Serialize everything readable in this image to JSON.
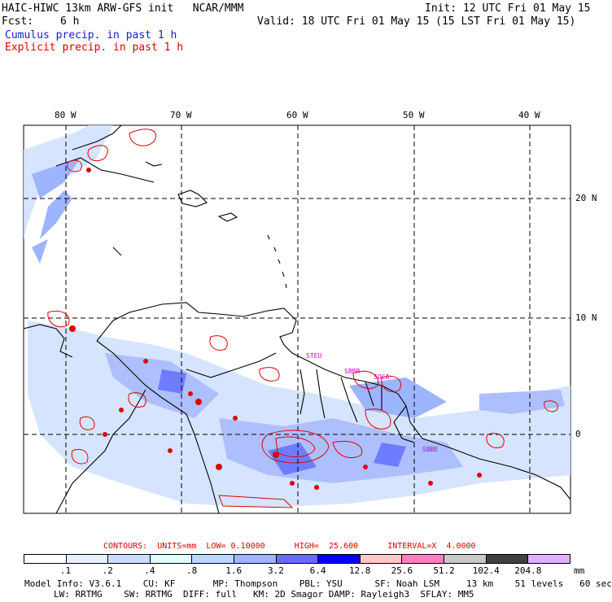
{
  "header": {
    "title": "HAIC-HIWC 13km ARW-GFS init   NCAR/MMM",
    "init": "Init: 12 UTC Fri 01 May 15",
    "fcst_label": "Fcst:",
    "fcst_value": "6 h",
    "valid": "Valid: 18 UTC Fri 01 May 15 (15 LST Fri 01 May 15)",
    "line_cumulus": "Cumulus precip. in past 1 h",
    "line_explicit": "Explicit precip. in past 1 h"
  },
  "map": {
    "lon_labels": [
      "80 W",
      "70 W",
      "60 W",
      "50 W",
      "40 W"
    ],
    "lat_labels": [
      "20 N",
      "10 N",
      "0"
    ],
    "place_labels": [
      "STEU",
      "SBBR",
      "SOCA",
      "SBBE"
    ],
    "colors": {
      "coast": "#000000",
      "grid": "#000000",
      "explicit": "#e00000",
      "cumulus_light": "#cfe0ff",
      "cumulus_mid": "#8da8ff",
      "cumulus_dark": "#5566ff",
      "station": "#cc00cc"
    }
  },
  "contours": {
    "text": "CONTOURS:  UNITS=mm  LOW= 0.10000      HIGH=  25.600      INTERVAL=X  4.0000"
  },
  "colorbar": {
    "unit": "mm",
    "labels": [
      ".1",
      ".2",
      ".4",
      ".8",
      "1.6",
      "3.2",
      "6.4",
      "12.8",
      "25.6",
      "51.2",
      "102.4",
      "204.8"
    ],
    "colors": [
      "#ffffff",
      "#e8f0ff",
      "#ccdcff",
      "#e0ffff",
      "#b8d8ff",
      "#a0b4ff",
      "#6a6aff",
      "#0000ff",
      "#ffc8c8",
      "#ff80c0",
      "#c8c8c8",
      "#404040",
      "#e0b0ff"
    ]
  },
  "model_info": {
    "line1": "Model Info: V3.6.1    CU: KF       MP: Thompson    PBL: YSU      SF: Noah LSM     13 km    51 levels   60 sec",
    "line2": "LW: RRTMG    SW: RRTMG  DIFF: full   KM: 2D Smagor DAMP: Rayleigh3  SFLAY: MM5"
  }
}
